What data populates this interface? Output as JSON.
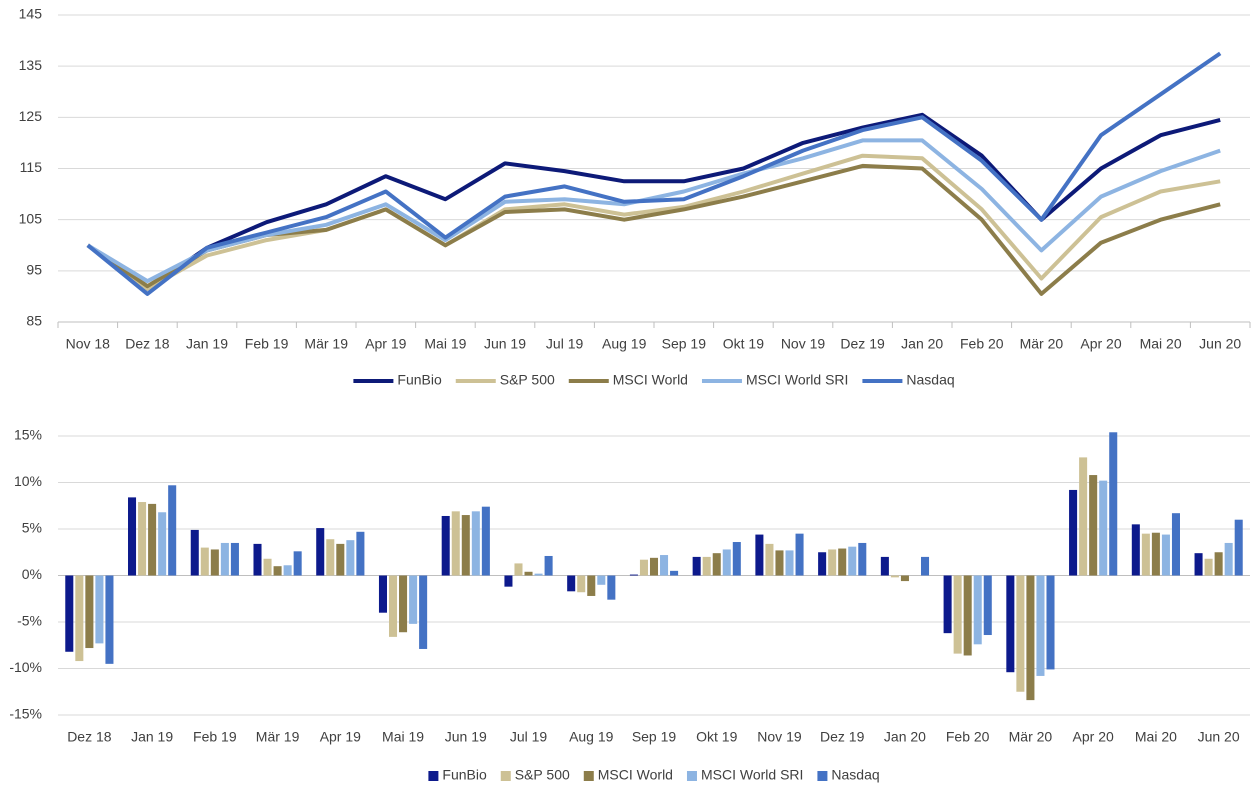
{
  "chart_data": [
    {
      "type": "line",
      "categories": [
        "Nov 18",
        "Dez 18",
        "Jan 19",
        "Feb 19",
        "Mär 19",
        "Apr 19",
        "Mai 19",
        "Jun 19",
        "Jul 19",
        "Aug 19",
        "Sep 19",
        "Okt 19",
        "Nov 19",
        "Dez 19",
        "Jan 20",
        "Feb 20",
        "Mär 20",
        "Apr 20",
        "Mai 20",
        "Jun 20"
      ],
      "series": [
        {
          "name": "FunBio",
          "color": "#0d1a78",
          "values": [
            100,
            91.5,
            99.5,
            104.5,
            108,
            113.5,
            109,
            116,
            114.5,
            112.5,
            112.5,
            115,
            120,
            123,
            125.5,
            117.5,
            105,
            115,
            121.5,
            124.5
          ]
        },
        {
          "name": "S&P 500",
          "color": "#cdc195",
          "values": [
            100,
            91.5,
            98,
            101,
            103,
            107,
            100,
            107,
            108,
            106,
            107.5,
            110.5,
            114,
            117.5,
            117,
            107,
            93.5,
            105.5,
            110.5,
            112.5
          ]
        },
        {
          "name": "MSCI World",
          "color": "#8c7d4a",
          "values": [
            100,
            92,
            99,
            102,
            103,
            107,
            100,
            106.5,
            107,
            105,
            107,
            109.5,
            112.5,
            115.5,
            115,
            105,
            90.5,
            100.5,
            105,
            108
          ]
        },
        {
          "name": "MSCI World SRI",
          "color": "#8db4e2",
          "values": [
            100,
            93,
            99,
            102,
            104,
            108,
            101,
            108.5,
            109,
            108,
            110.5,
            114,
            117,
            120.5,
            120.5,
            111,
            99,
            109.5,
            114.5,
            118.5
          ]
        },
        {
          "name": "Nasdaq",
          "color": "#4472c4",
          "values": [
            100,
            90.5,
            99.5,
            102.5,
            105.5,
            110.5,
            101.5,
            109.5,
            111.5,
            108.5,
            109,
            113.5,
            118.5,
            122.5,
            125,
            116.5,
            105,
            121.5,
            129.5,
            137.5
          ]
        }
      ],
      "ylim": [
        85,
        145
      ],
      "yticks": [
        85,
        95,
        105,
        115,
        125,
        135,
        145
      ],
      "grid": true,
      "legend": "bottom"
    },
    {
      "type": "bar",
      "categories": [
        "Dez 18",
        "Jan 19",
        "Feb 19",
        "Mär 19",
        "Apr 19",
        "Mai 19",
        "Jun 19",
        "Jul 19",
        "Aug 19",
        "Sep 19",
        "Okt 19",
        "Nov 19",
        "Dez 19",
        "Jan 20",
        "Feb 20",
        "Mär 20",
        "Apr 20",
        "Mai 20",
        "Jun 20"
      ],
      "series": [
        {
          "name": "FunBio",
          "color": "#0d1a8c",
          "values": [
            -8.2,
            8.4,
            4.9,
            3.4,
            5.1,
            -4.0,
            6.4,
            -1.2,
            -1.7,
            0.1,
            2.0,
            4.4,
            2.5,
            2.0,
            -6.2,
            -10.4,
            9.2,
            5.5,
            2.4
          ]
        },
        {
          "name": "S&P 500",
          "color": "#cdc195",
          "values": [
            -9.2,
            7.9,
            3.0,
            1.8,
            3.9,
            -6.6,
            6.9,
            1.3,
            -1.8,
            1.7,
            2.0,
            3.4,
            2.8,
            -0.2,
            -8.4,
            -12.5,
            12.7,
            4.5,
            1.8
          ]
        },
        {
          "name": "MSCI World",
          "color": "#8c7d4a",
          "values": [
            -7.8,
            7.7,
            2.8,
            1.0,
            3.4,
            -6.1,
            6.5,
            0.4,
            -2.2,
            1.9,
            2.4,
            2.7,
            2.9,
            -0.6,
            -8.6,
            -13.4,
            10.8,
            4.6,
            2.5
          ]
        },
        {
          "name": "MSCI World SRI",
          "color": "#8db4e2",
          "values": [
            -7.3,
            6.8,
            3.5,
            1.1,
            3.8,
            -5.2,
            6.9,
            0.2,
            -1.0,
            2.2,
            2.8,
            2.7,
            3.1,
            0,
            -7.4,
            -10.8,
            10.2,
            4.4,
            3.5
          ]
        },
        {
          "name": "Nasdaq",
          "color": "#4472c4",
          "values": [
            -9.5,
            9.7,
            3.5,
            2.6,
            4.7,
            -7.9,
            7.4,
            2.1,
            -2.6,
            0.5,
            3.6,
            4.5,
            3.5,
            2.0,
            -6.4,
            -10.1,
            15.4,
            6.7,
            6.0
          ]
        }
      ],
      "ylim": [
        -15,
        15
      ],
      "yticks": [
        {
          "value": -15,
          "label": "-15%"
        },
        {
          "value": -10,
          "label": "-10%"
        },
        {
          "value": -5,
          "label": "-5%"
        },
        {
          "value": 0,
          "label": "0%"
        },
        {
          "value": 5,
          "label": "5%"
        },
        {
          "value": 10,
          "label": "10%"
        },
        {
          "value": 15,
          "label": "15%"
        }
      ],
      "grid": true,
      "legend": "bottom"
    }
  ]
}
